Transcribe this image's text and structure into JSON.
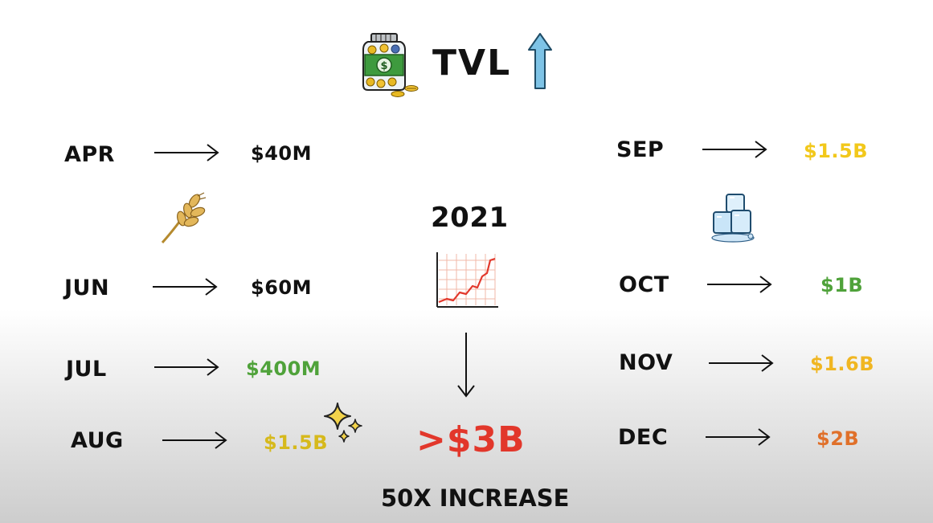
{
  "header": {
    "title": "TVL",
    "jar_label": "$"
  },
  "year": "2021",
  "left_rows": [
    {
      "month": "APR",
      "value": "$40M",
      "color": "#111111"
    },
    {
      "month": "JUN",
      "value": "$60M",
      "color": "#111111"
    },
    {
      "month": "JUL",
      "value": "$400M",
      "color": "#4fa23a"
    },
    {
      "month": "AUG",
      "value": "$1.5B",
      "color": "#d6b91c"
    }
  ],
  "right_rows": [
    {
      "month": "SEP",
      "value": "$1.5B",
      "color": "#f2c81b"
    },
    {
      "month": "OCT",
      "value": "$1B",
      "color": "#4fa23a"
    },
    {
      "month": "NOV",
      "value": "$1.6B",
      "color": "#f0b622"
    },
    {
      "month": "DEC",
      "value": "$2B",
      "color": "#e0702a"
    }
  ],
  "total": {
    "value": ">$3B",
    "color": "#e2372b"
  },
  "footer": "50X INCREASE",
  "icons": [
    "money-jar-icon",
    "up-arrow-icon",
    "wheat-icon",
    "growth-chart-icon",
    "ice-cubes-icon",
    "sparkles-icon",
    "down-arrow-icon"
  ]
}
